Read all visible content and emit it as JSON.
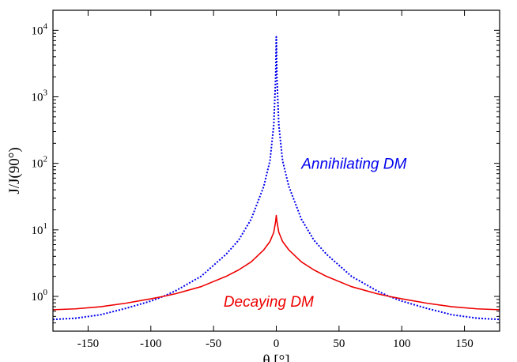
{
  "chart_data": {
    "type": "line",
    "xlabel": "θ [°]",
    "ylabel": "J/J(90°)",
    "xlim": [
      -178,
      178
    ],
    "ylim": [
      0.3,
      20000
    ],
    "y_scale": "log",
    "grid": false,
    "x_ticks": [
      -150,
      -100,
      -50,
      0,
      50,
      100,
      150
    ],
    "x_tick_labels": [
      "-150",
      "-100",
      "-50",
      "0",
      "50",
      "100",
      "150"
    ],
    "y_ticks": [
      1,
      10,
      100,
      1000,
      10000
    ],
    "y_tick_labels": [
      {
        "base": "10",
        "exp": "0"
      },
      {
        "base": "10",
        "exp": "1"
      },
      {
        "base": "10",
        "exp": "2"
      },
      {
        "base": "10",
        "exp": "3"
      },
      {
        "base": "10",
        "exp": "4"
      }
    ],
    "series": [
      {
        "name": "Annihilating DM",
        "color": "#0000ee",
        "style": "dotted",
        "x": [
          -178,
          -160,
          -140,
          -120,
          -100,
          -90,
          -80,
          -60,
          -40,
          -30,
          -20,
          -10,
          -5,
          -2,
          -0.5,
          0,
          0.5,
          2,
          5,
          10,
          20,
          30,
          40,
          60,
          80,
          90,
          100,
          120,
          140,
          160,
          178
        ],
        "y": [
          0.45,
          0.47,
          0.53,
          0.66,
          0.85,
          1.0,
          1.22,
          2.0,
          4.3,
          7.0,
          14.5,
          45,
          110,
          380,
          2000,
          8000,
          2000,
          380,
          110,
          45,
          14.5,
          7.0,
          4.3,
          2.0,
          1.22,
          1.0,
          0.85,
          0.66,
          0.53,
          0.47,
          0.45
        ]
      },
      {
        "name": "Decaying DM",
        "color": "#ee0000",
        "style": "solid",
        "x": [
          -178,
          -160,
          -140,
          -120,
          -100,
          -90,
          -80,
          -60,
          -40,
          -30,
          -20,
          -10,
          -5,
          -2,
          -0.5,
          0,
          0.5,
          2,
          5,
          10,
          20,
          30,
          40,
          60,
          80,
          90,
          100,
          120,
          140,
          160,
          178
        ],
        "y": [
          0.63,
          0.65,
          0.7,
          0.79,
          0.92,
          1.0,
          1.1,
          1.4,
          2.0,
          2.5,
          3.3,
          5.0,
          6.7,
          9.2,
          13.5,
          16.5,
          13.5,
          9.2,
          6.7,
          5.0,
          3.3,
          2.5,
          2.0,
          1.4,
          1.1,
          1.0,
          0.92,
          0.79,
          0.7,
          0.65,
          0.63
        ]
      }
    ],
    "annotations": [
      {
        "text": "Annihilating DM",
        "color": "#0000ee",
        "x": 20,
        "y": 100
      },
      {
        "text": "Decaying DM",
        "color": "#ee0000",
        "x": -42,
        "y": 0.85
      }
    ]
  }
}
